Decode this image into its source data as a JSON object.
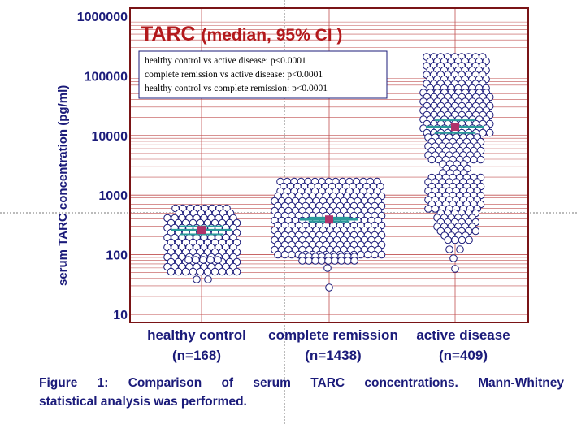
{
  "chart_data": {
    "type": "scatter",
    "title": "TARC (median, 95% CI )",
    "ylabel": "serum TARC concentration (pg/ml)",
    "yscale": "log",
    "ylim": [
      10,
      1000000
    ],
    "yticks": [
      "10",
      "100",
      "1000",
      "10000",
      "100000",
      "1000000"
    ],
    "grid": true,
    "categories": [
      {
        "name": "healthy control",
        "n": "(n=168)",
        "median": 260,
        "ci_low": 220,
        "ci_high": 300,
        "min": 38,
        "max": 680
      },
      {
        "name": "complete remission",
        "n": "(n=1438)",
        "median": 390,
        "ci_low": 360,
        "ci_high": 420,
        "min": 27,
        "max": 1800
      },
      {
        "name": "active disease",
        "n": "(n=409)",
        "median": 14000,
        "ci_low": 11000,
        "ci_high": 18000,
        "min": 55,
        "max": 230000
      }
    ],
    "annotations": [
      "healthy control vs active disease: p<0.0001",
      "complete remission vs active disease: p<0.0001",
      "healthy control vs complete remission: p<0.0001"
    ]
  },
  "caption": {
    "line1": "Figure 1: Comparison of serum TARC concentrations. Mann-Whitney",
    "line2": "statistical analysis was performed."
  },
  "colors": {
    "frame": "#7a1416",
    "grid": "#c05050",
    "marker": "#1b1b7a",
    "median": "#b0336a",
    "ci": "#2a9a9a",
    "title": "#b3191c"
  }
}
